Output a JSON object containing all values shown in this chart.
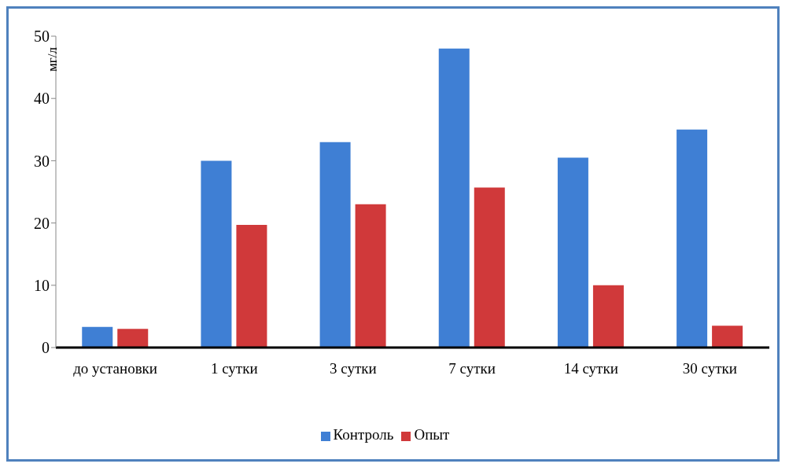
{
  "chart_data": {
    "type": "bar",
    "ylabel": "мг/л",
    "categories": [
      "до установки",
      "1 сутки",
      "3 сутки",
      "7 сутки",
      "14 сутки",
      "30 сутки"
    ],
    "series": [
      {
        "name": "Контроль",
        "color": "#3f7fd4",
        "values": [
          3.3,
          30,
          33,
          48,
          30.5,
          35
        ]
      },
      {
        "name": "Опыт",
        "color": "#d0393a",
        "values": [
          3,
          19.7,
          23,
          25.7,
          10,
          3.5
        ]
      }
    ],
    "ylim": [
      0,
      50
    ],
    "yticks": [
      0,
      10,
      20,
      30,
      40,
      50
    ],
    "legend": "bottom"
  }
}
